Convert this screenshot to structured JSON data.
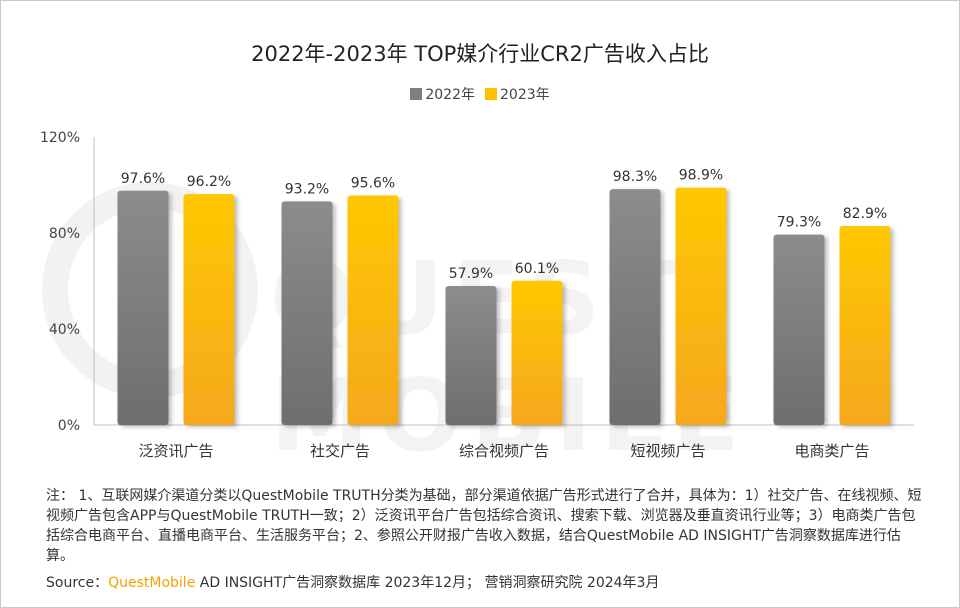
{
  "chart_data": {
    "type": "bar",
    "title": "2022年-2023年 TOP媒介行业CR2广告收入占比",
    "categories": [
      "泛资讯广告",
      "社交广告",
      "综合视频广告",
      "短视频广告",
      "电商类广告"
    ],
    "series": [
      {
        "name": "2022年",
        "values": [
          97.6,
          93.2,
          57.9,
          98.3,
          79.3
        ],
        "color": "#7f7f7f"
      },
      {
        "name": "2023年",
        "values": [
          96.2,
          95.6,
          60.1,
          98.9,
          82.9
        ],
        "color": "#ffc000"
      }
    ],
    "value_labels": [
      [
        "97.6%",
        "93.2%",
        "57.9%",
        "98.3%",
        "79.3%"
      ],
      [
        "96.2%",
        "95.6%",
        "60.1%",
        "98.9%",
        "82.9%"
      ]
    ],
    "yticks": [
      "0%",
      "40%",
      "80%",
      "120%"
    ],
    "ylim": [
      0,
      120
    ],
    "legend_position": "top-center",
    "grid": false
  },
  "watermark": "QUEST MOBILE",
  "notes": "注： 1、互联网媒介渠道分类以QuestMobile TRUTH分类为基础，部分渠道依据广告形式进行了合并，具体为：1）社交广告、在线视频、短视频广告包含APP与QuestMobile TRUTH一致；2）泛资讯平台广告包括综合资讯、搜索下载、浏览器及垂直资讯行业等；3）电商类广告包括综合电商平台、直播电商平台、生活服务平台；2、参照公开财报广告收入数据，结合QuestMobile AD INSIGHT广告洞察数据库进行估算。",
  "source": {
    "label": "Source：",
    "brand": "QuestMobile",
    "rest": " AD INSIGHT广告洞察数据库 2023年12月； 营销洞察研究院 2024年3月"
  }
}
